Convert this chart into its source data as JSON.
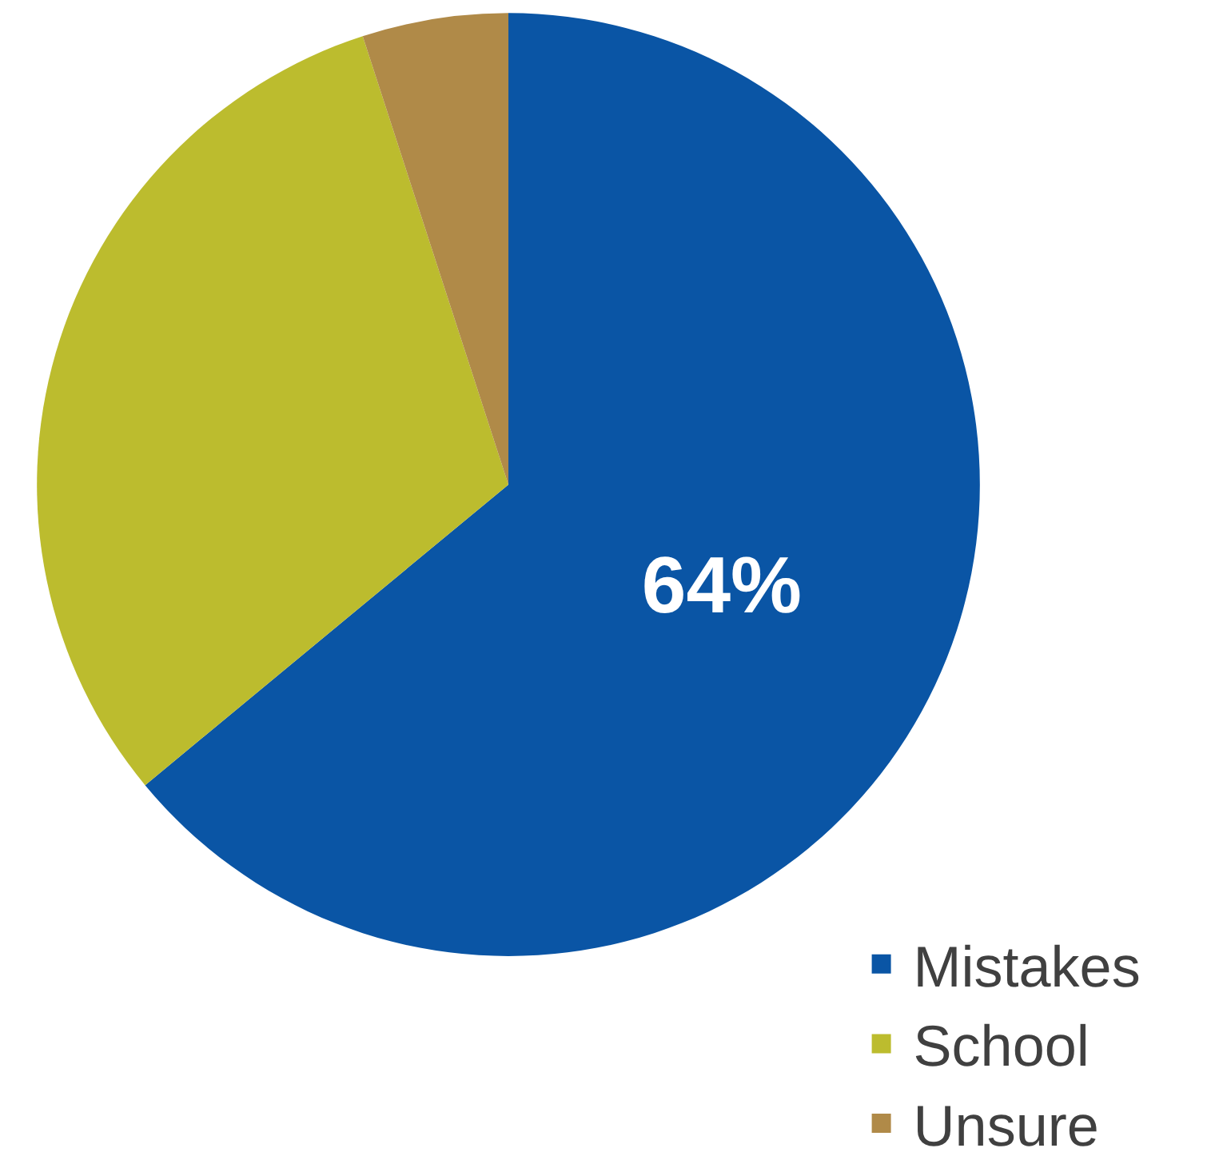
{
  "chart_data": {
    "type": "pie",
    "categories": [
      "Mistakes",
      "School",
      "Unsure"
    ],
    "values": [
      64,
      31,
      5
    ],
    "colors": [
      "#0a55a5",
      "#bcbc2e",
      "#b08a48"
    ],
    "value_labels": [
      "64%",
      null,
      null
    ],
    "legend": "bottom right"
  }
}
